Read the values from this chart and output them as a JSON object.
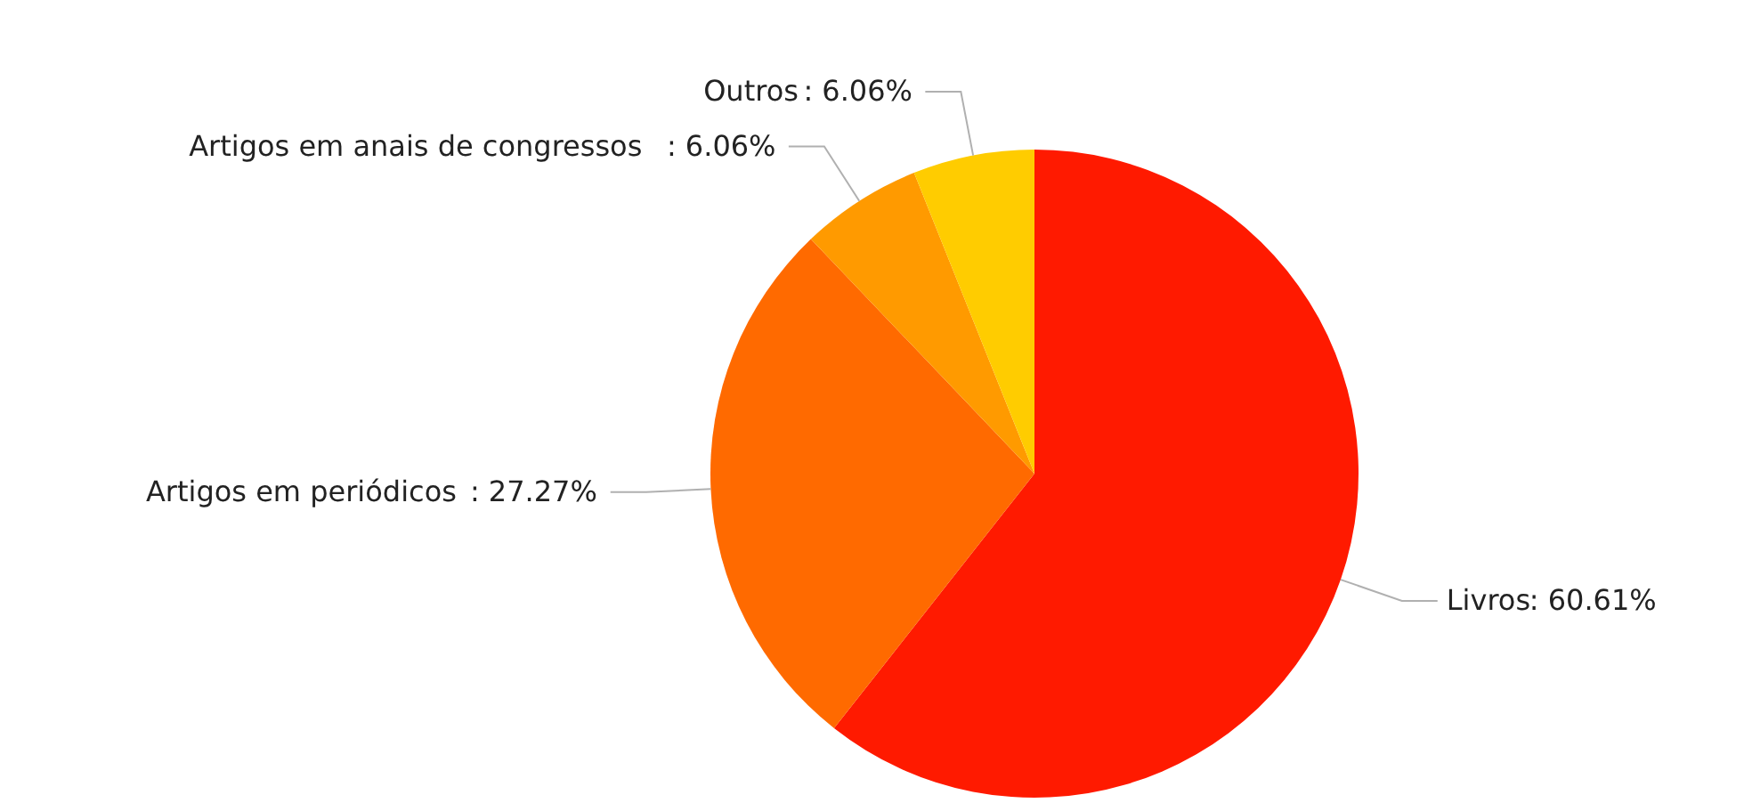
{
  "chart_data": {
    "type": "pie",
    "categories": [
      "Livros",
      "Artigos em periódicos",
      "Artigos em anais de congressos",
      "Outros"
    ],
    "values": [
      60.61,
      27.27,
      6.06,
      6.06
    ],
    "colors": [
      "#ff1a00",
      "#ff6a00",
      "#ff9a00",
      "#ffcc00"
    ],
    "value_labels": [
      ": 60.61%",
      ": 27.27%",
      ": 6.06%",
      ": 6.06%"
    ]
  }
}
